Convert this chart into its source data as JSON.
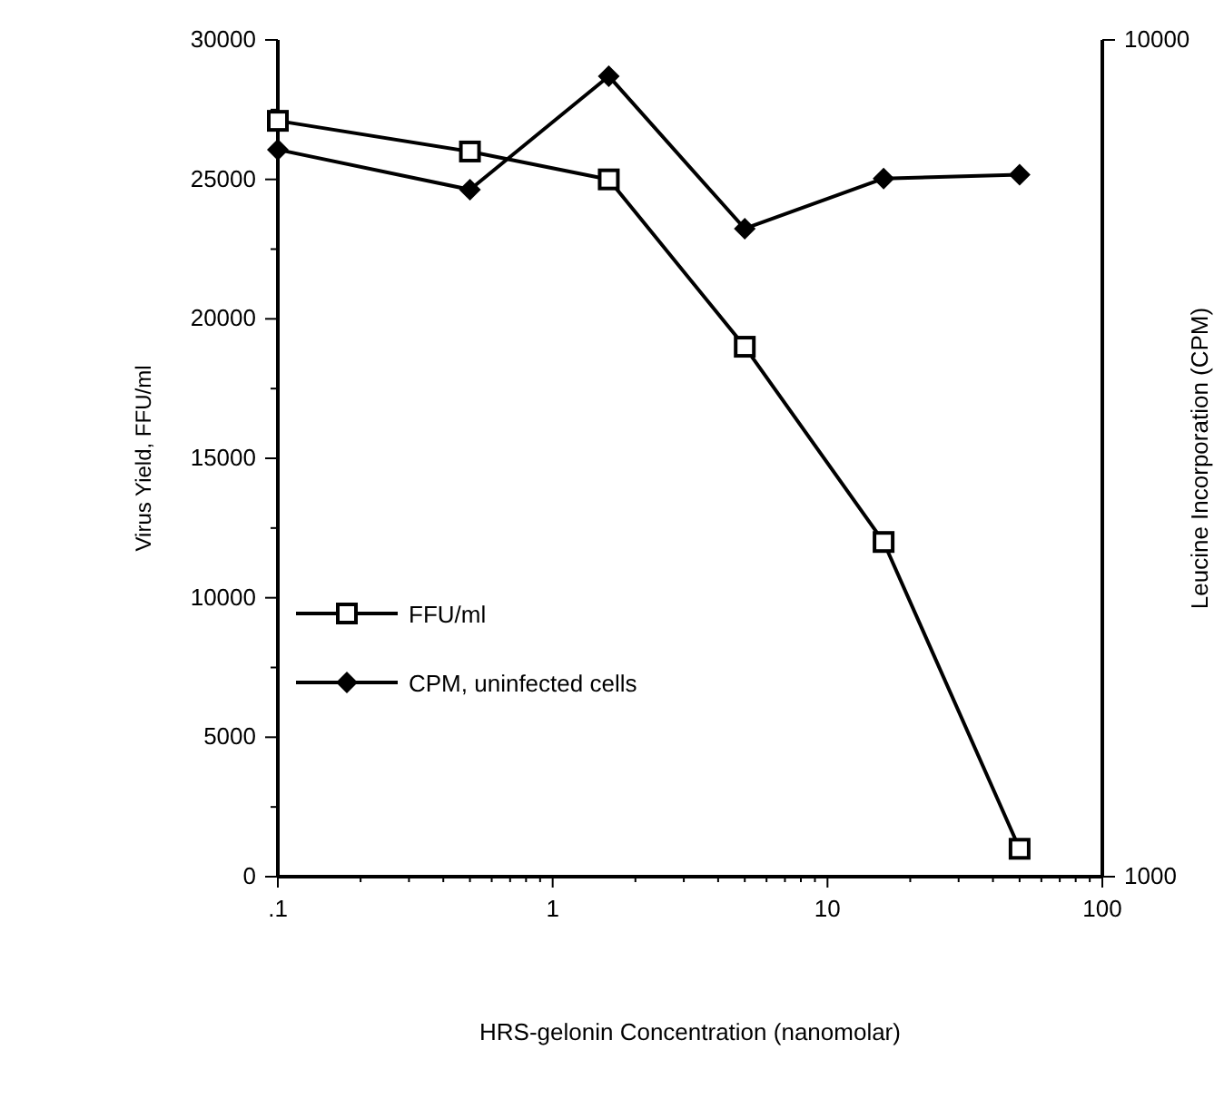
{
  "chart_data": {
    "type": "line",
    "xlabel": "HRS-gelonin Concentration (nanomolar)",
    "ylabel": "Virus Yield, FFU/ml",
    "y2label": "Leucine Incorporation (CPM)",
    "x": [
      0.1,
      0.5,
      1.6,
      5,
      16,
      50
    ],
    "log": "x",
    "xlim": [
      0.1,
      100
    ],
    "xticks": [
      {
        "value": 0.1,
        "label": ".1"
      },
      {
        "value": 0.2,
        "label": null
      },
      {
        "value": 0.3,
        "label": null
      },
      {
        "value": 0.4,
        "label": null
      },
      {
        "value": 0.5,
        "label": null
      },
      {
        "value": 0.6,
        "label": null
      },
      {
        "value": 0.7,
        "label": null
      },
      {
        "value": 0.8,
        "label": null
      },
      {
        "value": 0.9,
        "label": null
      },
      1,
      {
        "value": 2,
        "label": null
      },
      {
        "value": 3,
        "label": null
      },
      {
        "value": 4,
        "label": null
      },
      {
        "value": 5,
        "label": null
      },
      {
        "value": 6,
        "label": null
      },
      {
        "value": 7,
        "label": null
      },
      {
        "value": 8,
        "label": null
      },
      {
        "value": 9,
        "label": null
      },
      10,
      {
        "value": 20,
        "label": null
      },
      {
        "value": 30,
        "label": null
      },
      {
        "value": 40,
        "label": null
      },
      {
        "value": 50,
        "label": null
      },
      {
        "value": 60,
        "label": null
      },
      {
        "value": 70,
        "label": null
      },
      {
        "value": 80,
        "label": null
      },
      {
        "value": 90,
        "label": null
      },
      100
    ],
    "ylim": [
      0,
      30000
    ],
    "yticks": [
      0,
      {
        "value": 2500,
        "label": null
      },
      5000,
      {
        "value": 7500,
        "label": null
      },
      10000,
      {
        "value": 12500,
        "label": null
      },
      15000,
      {
        "value": 17500,
        "label": null
      },
      20000,
      {
        "value": 22500,
        "label": null
      },
      25000,
      {
        "value": 27500,
        "label": null
      },
      30000
    ],
    "y2lim": [
      1000,
      10000
    ],
    "y2ticks": [
      1000,
      10000
    ],
    "legend": "bottom left",
    "grid": false,
    "line_style": "solid",
    "series": [
      {
        "name": "FFU/ml",
        "color": "#000000",
        "marker": "square",
        "values": [
          27100,
          26000,
          25000,
          19000,
          12000,
          1000
        ]
      },
      {
        "name": "CPM, uninfected cells",
        "color": "#000000",
        "marker": "diamond",
        "axis": "y2",
        "values": [
          8820,
          8390,
          9610,
          7970,
          8510,
          8550
        ]
      }
    ]
  }
}
